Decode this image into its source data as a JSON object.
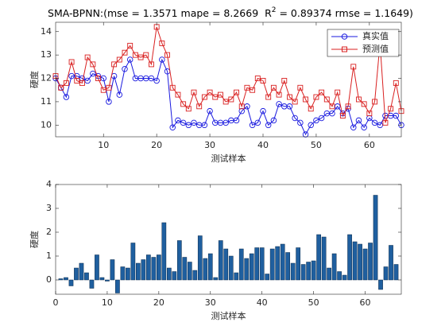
{
  "chart_data": [
    {
      "type": "line",
      "title": [
        "SMA-BPNN:(mse = 1.3571 mape = 8.2669  R",
        "2",
        " = 0.89374 rmse = 1.1649)"
      ],
      "xlabel": "测试样本",
      "ylabel": "硬度",
      "x": [
        1,
        2,
        3,
        4,
        5,
        6,
        7,
        8,
        9,
        10,
        11,
        12,
        13,
        14,
        15,
        16,
        17,
        18,
        19,
        20,
        21,
        22,
        23,
        24,
        25,
        26,
        27,
        28,
        29,
        30,
        31,
        32,
        33,
        34,
        35,
        36,
        37,
        38,
        39,
        40,
        41,
        42,
        43,
        44,
        45,
        46,
        47,
        48,
        49,
        50,
        51,
        52,
        53,
        54,
        55,
        56,
        57,
        58,
        59,
        60,
        61,
        62,
        63,
        64,
        65,
        66
      ],
      "xlim": [
        1,
        66
      ],
      "xticks": [
        10,
        20,
        30,
        40,
        50,
        60
      ],
      "ylim": [
        9.5,
        14.4
      ],
      "yticks": [
        10,
        11,
        12,
        13,
        14
      ],
      "legend": "upper right",
      "series": [
        {
          "name": "真实值",
          "color": "#1a1adf",
          "marker": "circle",
          "values": [
            12.0,
            11.6,
            11.2,
            12.1,
            12.1,
            12.0,
            11.9,
            12.2,
            12.1,
            12.0,
            11.0,
            12.1,
            11.3,
            12.4,
            12.8,
            12.0,
            12.0,
            12.0,
            12.0,
            11.9,
            12.8,
            12.3,
            9.9,
            10.2,
            10.1,
            10.0,
            10.1,
            10.0,
            10.0,
            10.6,
            10.1,
            10.1,
            10.1,
            10.2,
            10.2,
            10.6,
            10.8,
            10.0,
            10.1,
            10.6,
            10.0,
            10.2,
            10.9,
            10.8,
            10.8,
            10.3,
            10.1,
            9.6,
            10.0,
            10.2,
            10.3,
            10.5,
            10.5,
            10.8,
            10.5,
            10.7,
            9.9,
            10.2,
            9.9,
            10.3,
            10.1,
            10.0,
            10.4,
            10.4,
            10.4,
            10.0
          ]
        },
        {
          "name": "预测值",
          "color": "#d92020",
          "marker": "square",
          "values": [
            12.1,
            11.6,
            11.8,
            12.7,
            11.9,
            11.8,
            12.9,
            12.6,
            12.0,
            11.5,
            11.6,
            12.6,
            12.8,
            13.1,
            13.4,
            13.0,
            12.9,
            13.0,
            12.6,
            14.2,
            13.5,
            13.0,
            11.6,
            11.3,
            10.9,
            10.7,
            11.4,
            10.8,
            11.2,
            11.4,
            11.2,
            11.3,
            11.0,
            11.1,
            11.4,
            10.8,
            11.6,
            11.5,
            12.0,
            11.9,
            11.2,
            11.6,
            11.3,
            11.9,
            11.2,
            11.0,
            11.6,
            11.1,
            10.7,
            11.2,
            11.4,
            11.1,
            10.8,
            11.4,
            10.4,
            10.8,
            12.5,
            11.1,
            10.9,
            10.5,
            11.0,
            13.5,
            10.1,
            10.7,
            11.8,
            10.6
          ]
        }
      ]
    },
    {
      "type": "bar",
      "xlabel": "测试样本",
      "ylabel": "硬度",
      "x": [
        1,
        2,
        3,
        4,
        5,
        6,
        7,
        8,
        9,
        10,
        11,
        12,
        13,
        14,
        15,
        16,
        17,
        18,
        19,
        20,
        21,
        22,
        23,
        24,
        25,
        26,
        27,
        28,
        29,
        30,
        31,
        32,
        33,
        34,
        35,
        36,
        37,
        38,
        39,
        40,
        41,
        42,
        43,
        44,
        45,
        46,
        47,
        48,
        49,
        50,
        51,
        52,
        53,
        54,
        55,
        56,
        57,
        58,
        59,
        60,
        61,
        62,
        63,
        64,
        65,
        66
      ],
      "values": [
        0.05,
        0.1,
        -0.25,
        0.5,
        0.7,
        0.3,
        -0.35,
        1.05,
        0.1,
        -0.05,
        0.85,
        -0.55,
        0.55,
        0.5,
        1.55,
        0.7,
        0.85,
        1.05,
        0.95,
        1.05,
        2.4,
        0.5,
        0.35,
        1.65,
        0.95,
        0.75,
        0.4,
        1.85,
        0.9,
        1.1,
        0.1,
        1.65,
        1.3,
        1.0,
        0.3,
        1.3,
        0.9,
        1.1,
        1.35,
        1.35,
        0.25,
        1.3,
        1.4,
        1.5,
        1.15,
        0.7,
        1.35,
        0.65,
        0.75,
        0.8,
        1.9,
        1.8,
        0.5,
        1.1,
        0.35,
        0.2,
        1.9,
        1.6,
        1.5,
        1.3,
        1.55,
        3.55,
        -0.4,
        0.55,
        1.45,
        0.65
      ],
      "color": "#1f5f9f",
      "xlim": [
        0,
        67
      ],
      "xticks": [
        0,
        10,
        20,
        30,
        40,
        50,
        60
      ],
      "ylim": [
        -0.6,
        4
      ],
      "yticks": [
        0,
        1,
        2,
        3,
        4
      ]
    }
  ]
}
